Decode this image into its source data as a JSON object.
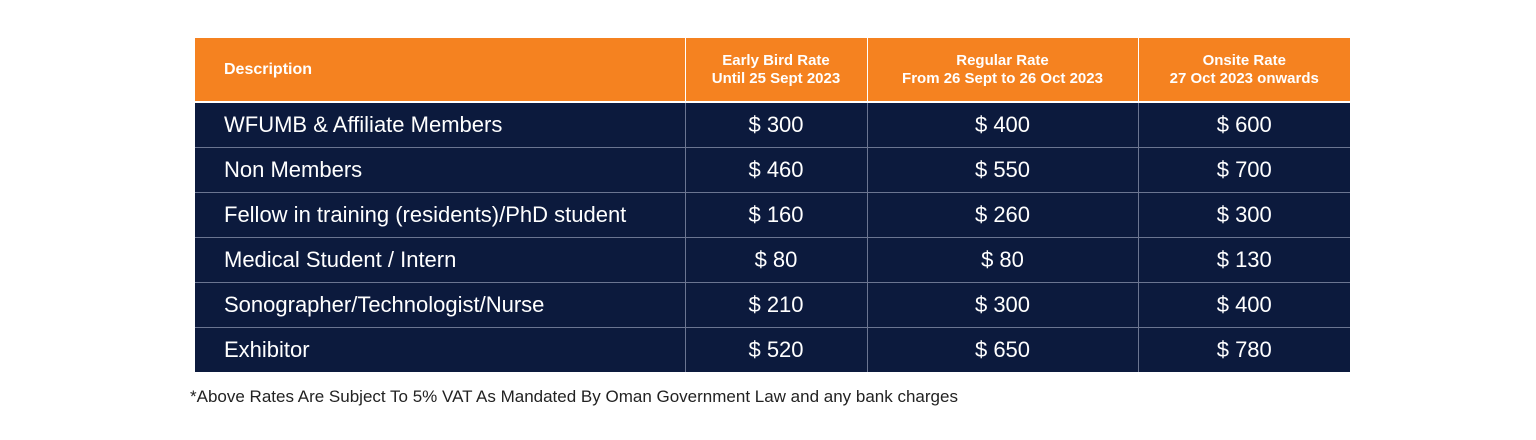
{
  "table": {
    "headers": {
      "description": "Description",
      "early": [
        "Early Bird Rate",
        "Until 25 Sept 2023"
      ],
      "regular": [
        "Regular Rate",
        "From 26 Sept to 26 Oct 2023"
      ],
      "onsite": [
        "Onsite Rate",
        "27 Oct 2023 onwards"
      ]
    },
    "rows": [
      {
        "description": "WFUMB & Affiliate Members",
        "early": "$ 300",
        "regular": "$ 400",
        "onsite": "$ 600"
      },
      {
        "description": "Non Members",
        "early": "$ 460",
        "regular": "$ 550",
        "onsite": "$ 700"
      },
      {
        "description": "Fellow in training (residents)/PhD student",
        "early": "$ 160",
        "regular": "$ 260",
        "onsite": "$ 300"
      },
      {
        "description": "Medical Student / Intern",
        "early": "$ 80",
        "regular": "$ 80",
        "onsite": "$ 130"
      },
      {
        "description": "Sonographer/Technologist/Nurse",
        "early": "$ 210",
        "regular": "$ 300",
        "onsite": "$ 400"
      },
      {
        "description": "Exhibitor",
        "early": "$ 520",
        "regular": "$ 650",
        "onsite": "$ 780"
      }
    ],
    "colors": {
      "header_bg": "#f58220",
      "body_bg": "#0c1a3d",
      "text": "#ffffff"
    }
  },
  "footnote": "*Above Rates Are Subject To 5% VAT As Mandated By Oman Government Law and any bank charges"
}
